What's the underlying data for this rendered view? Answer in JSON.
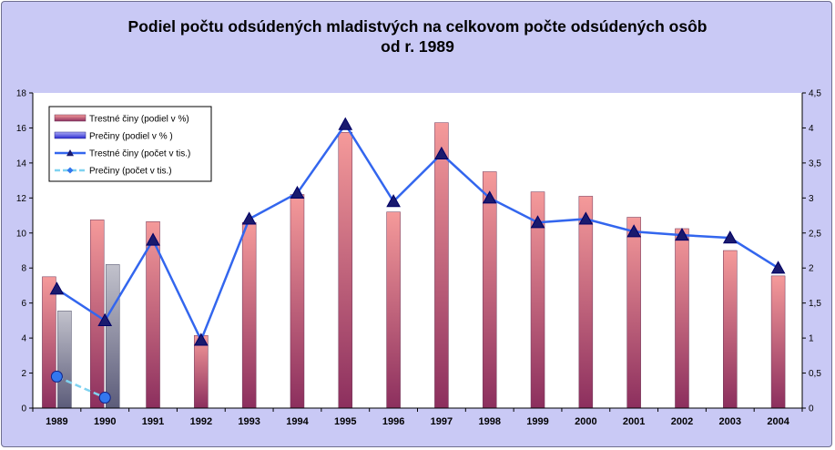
{
  "chart_data": {
    "type": "bar",
    "title_line1": "Podiel počtu odsúdených mladistvých na celkovom počte odsúdených osôb",
    "title_line2": "od r. 1989",
    "categories": [
      "1989",
      "1990",
      "1991",
      "1992",
      "1993",
      "1994",
      "1995",
      "1996",
      "1997",
      "1998",
      "1999",
      "2000",
      "2001",
      "2002",
      "2003",
      "2004"
    ],
    "ylim_left": [
      0,
      18
    ],
    "yticks_left": [
      "0",
      "2",
      "4",
      "6",
      "8",
      "10",
      "12",
      "14",
      "16",
      "18"
    ],
    "ylim_right": [
      0,
      4.5
    ],
    "yticks_right": [
      "0",
      "0,5",
      "1",
      "1,5",
      "2",
      "2,5",
      "3",
      "3,5",
      "4",
      "4,5"
    ],
    "grid": false,
    "legend_placement": "top-left",
    "series": [
      {
        "name": "Trestné činy (podiel v %)",
        "type": "bar",
        "axis": "left",
        "color": "#f28a8a",
        "values": [
          7.5,
          10.75,
          10.65,
          4.15,
          10.6,
          12.2,
          15.75,
          11.2,
          16.3,
          13.5,
          12.35,
          12.1,
          10.9,
          10.25,
          9.0,
          7.55
        ]
      },
      {
        "name": "Prečiny (podiel v % )",
        "type": "bar",
        "axis": "left",
        "color": "#b3b3c4",
        "values": [
          5.55,
          8.2,
          null,
          null,
          null,
          null,
          null,
          null,
          null,
          null,
          null,
          null,
          null,
          null,
          null,
          null
        ]
      },
      {
        "name": "Trestné činy (počet v tis.)",
        "type": "line",
        "axis": "right",
        "color": "#3366ee",
        "marker": "triangle",
        "values": [
          1.7,
          1.25,
          2.4,
          0.97,
          2.7,
          3.07,
          4.05,
          2.95,
          3.63,
          3.0,
          2.65,
          2.7,
          2.52,
          2.47,
          2.43,
          2.0
        ]
      },
      {
        "name": "Prečiny (počet v tis.)",
        "type": "line",
        "axis": "right",
        "color": "#7fd2f0",
        "marker": "diamond",
        "values": [
          0.45,
          0.15,
          null,
          null,
          null,
          null,
          null,
          null,
          null,
          null,
          null,
          null,
          null,
          null,
          null,
          null
        ]
      }
    ]
  }
}
